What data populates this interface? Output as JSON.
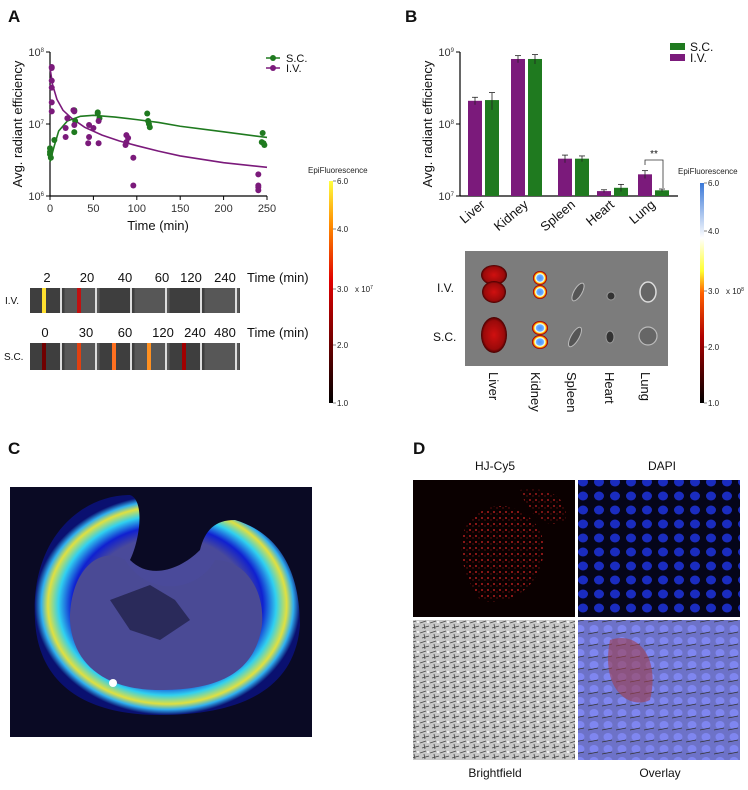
{
  "panels": {
    "a": "A",
    "b": "B",
    "c": "C",
    "d": "D"
  },
  "chart_data": [
    {
      "type": "scatter",
      "panel": "A",
      "xlabel": "Time (min)",
      "ylabel": "Avg. radiant efficiency",
      "xlim": [
        0,
        250
      ],
      "ylim": [
        1000000,
        100000000
      ],
      "yscale": "log",
      "xticks": [
        "0",
        "50",
        "100",
        "150",
        "200",
        "250"
      ],
      "yticks": [
        {
          "base": "10",
          "exp": "6"
        },
        {
          "base": "10",
          "exp": "7"
        },
        {
          "base": "10",
          "exp": "8"
        }
      ],
      "legend_position": "top-right",
      "series": [
        {
          "name": "S.C.",
          "color": "#1f7a1f",
          "points": [
            [
              0,
              4600000
            ],
            [
              0,
              4100000
            ],
            [
              0,
              3800000
            ],
            [
              1,
              3400000
            ],
            [
              5,
              6000000
            ],
            [
              28,
              15500000
            ],
            [
              29,
              11000000
            ],
            [
              28,
              7700000
            ],
            [
              55,
              14500000
            ],
            [
              55,
              14000000
            ],
            [
              57,
              12000000
            ],
            [
              112,
              14000000
            ],
            [
              113,
              11000000
            ],
            [
              114,
              10000000
            ],
            [
              115,
              9000000
            ],
            [
              245,
              7500000
            ],
            [
              244,
              5600000
            ],
            [
              246,
              5400000
            ],
            [
              247,
              5100000
            ]
          ],
          "fit": [
            [
              0,
              3000000
            ],
            [
              5,
              5000000
            ],
            [
              10,
              8000000
            ],
            [
              20,
              11000000
            ],
            [
              35,
              12800000
            ],
            [
              50,
              13200000
            ],
            [
              75,
              12500000
            ],
            [
              100,
              11500000
            ],
            [
              125,
              10500000
            ],
            [
              150,
              9300000
            ],
            [
              200,
              7800000
            ],
            [
              250,
              6500000
            ]
          ]
        },
        {
          "name": "I.V.",
          "color": "#7b1a7b",
          "points": [
            [
              2,
              62000000
            ],
            [
              2,
              60000000
            ],
            [
              2,
              40000000
            ],
            [
              2,
              32000000
            ],
            [
              2,
              20000000
            ],
            [
              2,
              15000000
            ],
            [
              20,
              12000000
            ],
            [
              18,
              8800000
            ],
            [
              18,
              6600000
            ],
            [
              27,
              15500000
            ],
            [
              28,
              15000000
            ],
            [
              28,
              9700000
            ],
            [
              45,
              9700000
            ],
            [
              50,
              8800000
            ],
            [
              45,
              6600000
            ],
            [
              44,
              5400000
            ],
            [
              56,
              11000000
            ],
            [
              56,
              5400000
            ],
            [
              88,
              7000000
            ],
            [
              90,
              6400000
            ],
            [
              88,
              5600000
            ],
            [
              87,
              5100000
            ],
            [
              96,
              3400000
            ],
            [
              96,
              1400000
            ],
            [
              240,
              2000000
            ],
            [
              240,
              1400000
            ],
            [
              240,
              1330000
            ],
            [
              240,
              1200000
            ]
          ],
          "fit": [
            [
              0,
              60000000
            ],
            [
              3,
              35000000
            ],
            [
              8,
              22000000
            ],
            [
              15,
              15500000
            ],
            [
              25,
              12000000
            ],
            [
              40,
              9000000
            ],
            [
              60,
              7000000
            ],
            [
              80,
              5800000
            ],
            [
              100,
              5000000
            ],
            [
              125,
              4200000
            ],
            [
              150,
              3600000
            ],
            [
              200,
              2900000
            ],
            [
              250,
              2500000
            ]
          ]
        }
      ]
    },
    {
      "type": "bar",
      "panel": "B",
      "ylabel": "Avg. radiant efficiency",
      "yscale": "log",
      "ylim": [
        10000000,
        1000000000
      ],
      "yticks": [
        {
          "base": "10",
          "exp": "7"
        },
        {
          "base": "10",
          "exp": "8"
        },
        {
          "base": "10",
          "exp": "9"
        }
      ],
      "categories": [
        "Liver",
        "Kidney",
        "Spleen",
        "Heart",
        "Lung"
      ],
      "legend_position": "top-right",
      "series": [
        {
          "name": "I.V.",
          "color": "#7b1a7b",
          "values": [
            210000000,
            800000000,
            33000000,
            11700000,
            20000000
          ],
          "errors": [
            25000000,
            90000000,
            4000000,
            500000,
            2500000
          ]
        },
        {
          "name": "S.C.",
          "color": "#1f7a1f",
          "values": [
            215000000,
            800000000,
            33000000,
            13000000,
            12000000
          ],
          "errors": [
            58000000,
            120000000,
            3000000,
            1500000,
            500000
          ]
        }
      ],
      "annotation": "**"
    }
  ],
  "panel_a": {
    "colorbar": {
      "title": "EpiFluorescence",
      "ticks": [
        "6.0",
        "4.0",
        "3.0",
        "2.0",
        "1.0"
      ],
      "tick_values": [
        6.0,
        4.0,
        3.0,
        2.0,
        1.0
      ],
      "multiplier": "x 10",
      "exp": "7"
    },
    "iv_strip": {
      "label": "I.V.",
      "times": [
        "2",
        "20",
        "40",
        "60",
        "120",
        "240"
      ],
      "unit": "Time (min)"
    },
    "sc_strip": {
      "label": "S.C.",
      "times": [
        "0",
        "30",
        "60",
        "120",
        "240",
        "480"
      ],
      "unit": "Time (min)"
    }
  },
  "panel_b": {
    "colorbar": {
      "title": "EpiFluorescence",
      "ticks": [
        "6.0",
        "4.0",
        "3.0",
        "2.0",
        "1.0"
      ],
      "tick_values": [
        6.0,
        4.0,
        3.0,
        2.0,
        1.0
      ],
      "multiplier": "x 10",
      "exp": "8"
    },
    "rows": [
      "I.V.",
      "S.C."
    ],
    "organs": [
      "Liver",
      "Kidney",
      "Spleen",
      "Heart",
      "Lung"
    ]
  },
  "panel_d": {
    "titles": [
      "HJ-Cy5",
      "DAPI"
    ],
    "captions": [
      "Brightfield",
      "Overlay"
    ]
  }
}
